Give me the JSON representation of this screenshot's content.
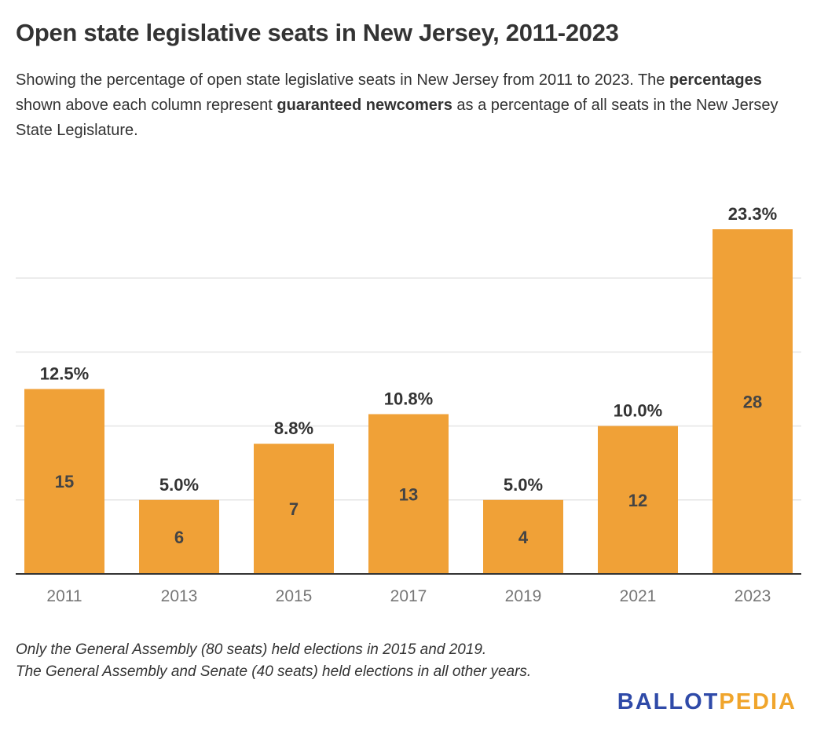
{
  "title": "Open state legislative seats in New Jersey, 2011-2023",
  "subtitle": {
    "part1": "Showing the percentage of open state legislative seats in New Jersey from 2011 to 2023. The ",
    "bold1": "percentages",
    "part2": " shown above each column represent ",
    "bold2": "guaranteed newcomers",
    "part3": " as a percentage of all seats in the New Jersey State Legislature."
  },
  "notes": [
    "Only the General Assembly (80 seats) held elections in 2015 and 2019.",
    "The General Assembly and Senate (40 seats) held elections in all other years."
  ],
  "logo": {
    "part1": "BALLOT",
    "part2": "PEDIA"
  },
  "colors": {
    "bar": "#f0a137",
    "text": "#333333",
    "axis_label": "#777777",
    "grid": "#e5e5e5"
  },
  "chart_data": {
    "type": "bar",
    "categories": [
      "2011",
      "2013",
      "2015",
      "2017",
      "2019",
      "2021",
      "2023"
    ],
    "values": [
      12.5,
      5.0,
      8.8,
      10.8,
      5.0,
      10.0,
      23.3
    ],
    "value_labels": [
      "12.5%",
      "5.0%",
      "8.8%",
      "10.8%",
      "5.0%",
      "10.0%",
      "23.3%"
    ],
    "inner_labels": [
      "15",
      "6",
      "7",
      "13",
      "4",
      "12",
      "28"
    ],
    "ylim": [
      0,
      25
    ],
    "gridlines": [
      5,
      10,
      15,
      20
    ],
    "grid": true,
    "xlabel": "",
    "ylabel": ""
  }
}
